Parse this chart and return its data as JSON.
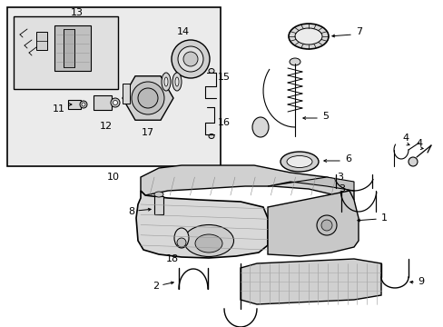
{
  "bg_color": "#ffffff",
  "line_color": "#000000",
  "gray_bg": "#e8e8e8",
  "component_gray": "#c8c8c8",
  "figsize": [
    4.89,
    3.6
  ],
  "dpi": 100
}
